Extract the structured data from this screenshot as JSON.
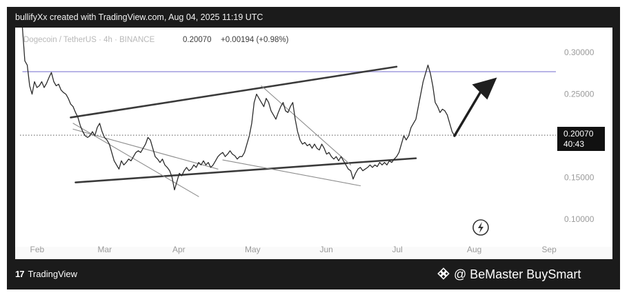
{
  "header": {
    "credit": "bullifyXx created with TradingView.com, Aug 04, 2025 11:19 UTC"
  },
  "legend": {
    "symbol": "Dogecoin / TetherUS · 4h · BINANCE",
    "price": "0.20070",
    "change": "+0.00194 (+0.98%)"
  },
  "price_badge": {
    "price": "0.20070",
    "countdown": "40:43"
  },
  "footer": {
    "brand": "TradingView",
    "watermark": "@ BeMaster BuySmart"
  },
  "icons": [
    "tradingview-logo-icon",
    "binance-logo-icon",
    "lightning-icon",
    "trend-arrow-icon"
  ],
  "colors": {
    "frame": "#1b1b1b",
    "price_line": "#2a2a2a",
    "resistance_line": "#b8b4e6",
    "trend_lines": "#3a3a3a",
    "channel_lines": "#8c8c8c",
    "axis_text": "#9a9a9a"
  },
  "chart_data": {
    "type": "line",
    "title": "Dogecoin / TetherUS · 4h · BINANCE",
    "xlabel": "",
    "ylabel": "",
    "x_ticks": [
      "Feb",
      "Mar",
      "Apr",
      "May",
      "Jun",
      "Jul",
      "Aug",
      "Sep"
    ],
    "y_ticks": [
      "0.30000",
      "0.25000",
      "0.15000",
      "0.10000"
    ],
    "ylim": [
      0.075,
      0.33
    ],
    "x_range_days": [
      -5,
      219
    ],
    "x_reference": {
      "Feb": 0,
      "Mar": 28,
      "Apr": 59,
      "May": 89,
      "Jun": 120,
      "Jul": 150,
      "Aug": 181,
      "Sep": 212
    },
    "last_price": 0.2007,
    "last_price_countdown": "40:43",
    "series": [
      {
        "values": [
          [
            -2,
            0.33
          ],
          [
            -1,
            0.29
          ],
          [
            0,
            0.285
          ],
          [
            1,
            0.26
          ],
          [
            2,
            0.25
          ],
          [
            3,
            0.265
          ],
          [
            4,
            0.258
          ],
          [
            5,
            0.26
          ],
          [
            6,
            0.265
          ],
          [
            7,
            0.258
          ],
          [
            8,
            0.263
          ],
          [
            9,
            0.27
          ],
          [
            10,
            0.276
          ],
          [
            11,
            0.265
          ],
          [
            12,
            0.26
          ],
          [
            13,
            0.262
          ],
          [
            14,
            0.255
          ],
          [
            15,
            0.252
          ],
          [
            16,
            0.25
          ],
          [
            17,
            0.245
          ],
          [
            18,
            0.238
          ],
          [
            19,
            0.235
          ],
          [
            20,
            0.228
          ],
          [
            21,
            0.222
          ],
          [
            22,
            0.212
          ],
          [
            23,
            0.205
          ],
          [
            24,
            0.2
          ],
          [
            25,
            0.198
          ],
          [
            26,
            0.2
          ],
          [
            27,
            0.205
          ],
          [
            28,
            0.2
          ],
          [
            29,
            0.21
          ],
          [
            30,
            0.215
          ],
          [
            31,
            0.205
          ],
          [
            32,
            0.198
          ],
          [
            33,
            0.195
          ],
          [
            34,
            0.19
          ],
          [
            35,
            0.18
          ],
          [
            36,
            0.17
          ],
          [
            37,
            0.165
          ],
          [
            38,
            0.16
          ],
          [
            39,
            0.17
          ],
          [
            40,
            0.165
          ],
          [
            41,
            0.168
          ],
          [
            42,
            0.172
          ],
          [
            43,
            0.17
          ],
          [
            44,
            0.175
          ],
          [
            45,
            0.18
          ],
          [
            46,
            0.182
          ],
          [
            47,
            0.18
          ],
          [
            48,
            0.185
          ],
          [
            49,
            0.19
          ],
          [
            50,
            0.198
          ],
          [
            51,
            0.195
          ],
          [
            52,
            0.185
          ],
          [
            53,
            0.175
          ],
          [
            54,
            0.172
          ],
          [
            55,
            0.168
          ],
          [
            56,
            0.172
          ],
          [
            57,
            0.165
          ],
          [
            58,
            0.162
          ],
          [
            59,
            0.158
          ],
          [
            60,
            0.15
          ],
          [
            61,
            0.135
          ],
          [
            62,
            0.145
          ],
          [
            63,
            0.155
          ],
          [
            64,
            0.152
          ],
          [
            65,
            0.158
          ],
          [
            66,
            0.162
          ],
          [
            67,
            0.158
          ],
          [
            68,
            0.16
          ],
          [
            69,
            0.165
          ],
          [
            70,
            0.162
          ],
          [
            71,
            0.168
          ],
          [
            72,
            0.165
          ],
          [
            73,
            0.17
          ],
          [
            74,
            0.165
          ],
          [
            75,
            0.168
          ],
          [
            76,
            0.162
          ],
          [
            77,
            0.165
          ],
          [
            78,
            0.17
          ],
          [
            79,
            0.175
          ],
          [
            80,
            0.178
          ],
          [
            81,
            0.18
          ],
          [
            82,
            0.175
          ],
          [
            83,
            0.178
          ],
          [
            84,
            0.182
          ],
          [
            85,
            0.178
          ],
          [
            86,
            0.176
          ],
          [
            87,
            0.172
          ],
          [
            88,
            0.175
          ],
          [
            89,
            0.175
          ],
          [
            90,
            0.18
          ],
          [
            91,
            0.19
          ],
          [
            92,
            0.2
          ],
          [
            93,
            0.215
          ],
          [
            94,
            0.24
          ],
          [
            95,
            0.25
          ],
          [
            96,
            0.245
          ],
          [
            97,
            0.24
          ],
          [
            98,
            0.235
          ],
          [
            99,
            0.245
          ],
          [
            100,
            0.24
          ],
          [
            101,
            0.23
          ],
          [
            102,
            0.225
          ],
          [
            103,
            0.22
          ],
          [
            104,
            0.228
          ],
          [
            105,
            0.235
          ],
          [
            106,
            0.24
          ],
          [
            107,
            0.23
          ],
          [
            108,
            0.228
          ],
          [
            109,
            0.235
          ],
          [
            110,
            0.24
          ],
          [
            111,
            0.22
          ],
          [
            112,
            0.205
          ],
          [
            113,
            0.195
          ],
          [
            114,
            0.19
          ],
          [
            115,
            0.192
          ],
          [
            116,
            0.188
          ],
          [
            117,
            0.19
          ],
          [
            118,
            0.185
          ],
          [
            119,
            0.19
          ],
          [
            120,
            0.185
          ],
          [
            121,
            0.183
          ],
          [
            122,
            0.19
          ],
          [
            123,
            0.185
          ],
          [
            124,
            0.178
          ],
          [
            125,
            0.18
          ],
          [
            126,
            0.175
          ],
          [
            127,
            0.172
          ],
          [
            128,
            0.175
          ],
          [
            129,
            0.17
          ],
          [
            130,
            0.175
          ],
          [
            131,
            0.17
          ],
          [
            132,
            0.165
          ],
          [
            133,
            0.16
          ],
          [
            134,
            0.158
          ],
          [
            135,
            0.148
          ],
          [
            136,
            0.155
          ],
          [
            137,
            0.16
          ],
          [
            138,
            0.162
          ],
          [
            139,
            0.158
          ],
          [
            140,
            0.16
          ],
          [
            141,
            0.162
          ],
          [
            142,
            0.165
          ],
          [
            143,
            0.162
          ],
          [
            144,
            0.165
          ],
          [
            145,
            0.163
          ],
          [
            146,
            0.168
          ],
          [
            147,
            0.165
          ],
          [
            148,
            0.168
          ],
          [
            149,
            0.165
          ],
          [
            150,
            0.17
          ],
          [
            151,
            0.168
          ],
          [
            152,
            0.172
          ],
          [
            153,
            0.175
          ],
          [
            154,
            0.18
          ],
          [
            155,
            0.19
          ],
          [
            156,
            0.2
          ],
          [
            157,
            0.195
          ],
          [
            158,
            0.2
          ],
          [
            159,
            0.21
          ],
          [
            160,
            0.215
          ],
          [
            161,
            0.22
          ],
          [
            162,
            0.235
          ],
          [
            163,
            0.25
          ],
          [
            164,
            0.265
          ],
          [
            165,
            0.275
          ],
          [
            166,
            0.285
          ],
          [
            167,
            0.275
          ],
          [
            168,
            0.26
          ],
          [
            169,
            0.24
          ],
          [
            170,
            0.235
          ],
          [
            171,
            0.228
          ],
          [
            172,
            0.232
          ],
          [
            173,
            0.23
          ],
          [
            174,
            0.225
          ],
          [
            175,
            0.215
          ],
          [
            176,
            0.205
          ],
          [
            177,
            0.2
          ]
        ]
      }
    ],
    "horizontal_line": {
      "y": 0.277
    },
    "annotations": [
      {
        "type": "trend_line",
        "style": "dark",
        "points": [
          [
            18,
            0.222
          ],
          [
            153,
            0.283
          ]
        ]
      },
      {
        "type": "trend_line",
        "style": "dark",
        "points": [
          [
            20,
            0.144
          ],
          [
            161,
            0.173
          ]
        ]
      },
      {
        "type": "trend_line",
        "style": "light",
        "points": [
          [
            19,
            0.215
          ],
          [
            71,
            0.127
          ]
        ]
      },
      {
        "type": "trend_line",
        "style": "light",
        "points": [
          [
            19,
            0.208
          ],
          [
            79,
            0.16
          ]
        ]
      },
      {
        "type": "trend_line",
        "style": "light",
        "points": [
          [
            97,
            0.26
          ],
          [
            134,
            0.165
          ]
        ]
      },
      {
        "type": "trend_line",
        "style": "light",
        "points": [
          [
            81,
            0.171
          ],
          [
            138,
            0.14
          ]
        ]
      },
      {
        "type": "arrow",
        "points": [
          [
            177,
            0.2
          ],
          [
            190,
            0.265
          ]
        ]
      }
    ]
  }
}
